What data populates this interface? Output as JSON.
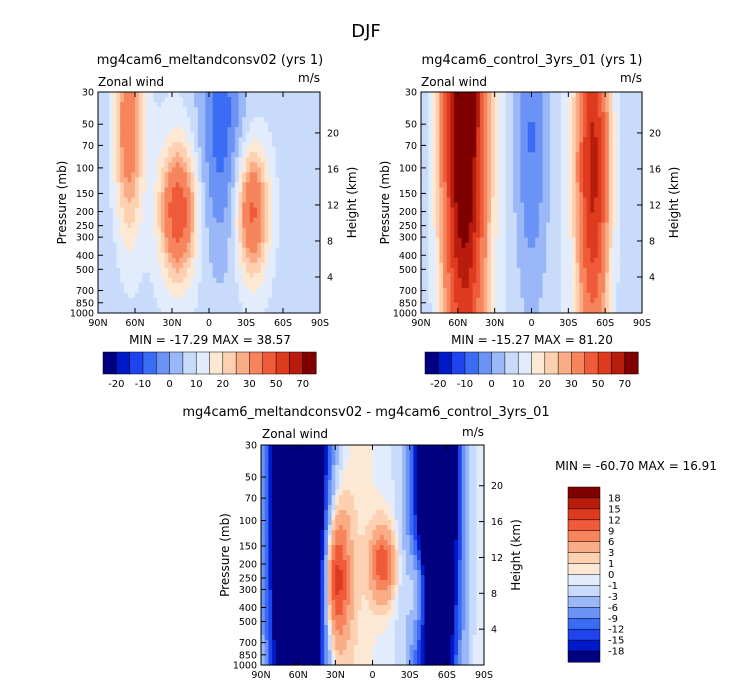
{
  "page_title": "DJF",
  "colors": {
    "blues": [
      "#000080",
      "#0019c9",
      "#1e44f0",
      "#3a6cf4",
      "#6b93f5",
      "#9ab7f7",
      "#c8dbfa",
      "#e2ecfc"
    ],
    "reds": [
      "#fde8d4",
      "#fcd0b0",
      "#f9ac85",
      "#f6855e",
      "#ef5b38",
      "#de3a1e",
      "#b81c0c",
      "#800000"
    ]
  },
  "chart_data": [
    {
      "type": "heatmap",
      "id": "panel1",
      "title": "mg4cam6_meltandconsv02 (yrs 1)",
      "left_label": "Zonal wind",
      "right_label": "m/s",
      "xlabel": "",
      "ylabel": "Pressure (mb)",
      "y2label": "Height (km)",
      "x_ticks": [
        "90N",
        "60N",
        "30N",
        "0",
        "30S",
        "60S",
        "90S"
      ],
      "x_values": [
        90,
        60,
        30,
        0,
        -30,
        -60,
        -90
      ],
      "y_ticks": [
        "30",
        "50",
        "70",
        "100",
        "150",
        "200",
        "250",
        "300",
        "400",
        "500",
        "700",
        "850",
        "1000"
      ],
      "y_values": [
        30,
        50,
        70,
        100,
        150,
        200,
        250,
        300,
        400,
        500,
        700,
        850,
        1000
      ],
      "y2_ticks": [
        "20",
        "16",
        "12",
        "8",
        "4"
      ],
      "y2_values": [
        20,
        16,
        12,
        8,
        4
      ],
      "stats": "MIN = -17.29   MAX =  38.57",
      "levels": [
        "-20",
        "-10",
        "0",
        "10",
        "20",
        "30",
        "50",
        "70"
      ],
      "features": [
        {
          "lat": 65,
          "p": 50,
          "value": 30,
          "spread_lat": 8,
          "spread_p": 60
        },
        {
          "lat": 25,
          "p": 200,
          "value": 38.57,
          "spread_lat": 10,
          "spread_p": 140
        },
        {
          "lat": -35,
          "p": 200,
          "value": 34,
          "spread_lat": 9,
          "spread_p": 140
        },
        {
          "lat": -10,
          "p": 50,
          "value": -17.29,
          "spread_lat": 14,
          "spread_p": 80
        }
      ]
    },
    {
      "type": "heatmap",
      "id": "panel2",
      "title": "mg4cam6_control_3yrs_01 (yrs 1)",
      "left_label": "Zonal wind",
      "right_label": "m/s",
      "xlabel": "",
      "ylabel": "Pressure (mb)",
      "y2label": "Height (km)",
      "x_ticks": [
        "90N",
        "60N",
        "30N",
        "0",
        "30S",
        "60S",
        "90S"
      ],
      "x_values": [
        90,
        60,
        30,
        0,
        -30,
        -60,
        -90
      ],
      "y_ticks": [
        "30",
        "50",
        "70",
        "100",
        "150",
        "200",
        "250",
        "300",
        "400",
        "500",
        "700",
        "850",
        "1000"
      ],
      "y_values": [
        30,
        50,
        70,
        100,
        150,
        200,
        250,
        300,
        400,
        500,
        700,
        850,
        1000
      ],
      "y2_ticks": [
        "20",
        "16",
        "12",
        "8",
        "4"
      ],
      "y2_values": [
        20,
        16,
        12,
        8,
        4
      ],
      "stats": "MIN = -15.27   MAX =  81.20",
      "levels": [
        "-20",
        "-10",
        "0",
        "10",
        "20",
        "30",
        "50",
        "70"
      ],
      "features": [
        {
          "lat": 55,
          "p": 40,
          "value": 81.2,
          "spread_lat": 12,
          "spread_p": 120
        },
        {
          "lat": -50,
          "p": 100,
          "value": 55,
          "spread_lat": 9,
          "spread_p": 200
        },
        {
          "lat": 0,
          "p": 60,
          "value": -15.27,
          "spread_lat": 10,
          "spread_p": 120
        }
      ]
    },
    {
      "type": "heatmap",
      "id": "panel3",
      "title": "mg4cam6_meltandconsv02 - mg4cam6_control_3yrs_01",
      "left_label": "Zonal wind",
      "right_label": "m/s",
      "xlabel": "",
      "ylabel": "Pressure (mb)",
      "y2label": "Height (km)",
      "x_ticks": [
        "90N",
        "60N",
        "30N",
        "0",
        "30S",
        "60S",
        "90S"
      ],
      "x_values": [
        90,
        60,
        30,
        0,
        -30,
        -60,
        -90
      ],
      "y_ticks": [
        "30",
        "50",
        "70",
        "100",
        "150",
        "200",
        "250",
        "300",
        "400",
        "500",
        "700",
        "850",
        "1000"
      ],
      "y_values": [
        30,
        50,
        70,
        100,
        150,
        200,
        250,
        300,
        400,
        500,
        700,
        850,
        1000
      ],
      "y2_ticks": [
        "20",
        "16",
        "12",
        "8",
        "4"
      ],
      "y2_values": [
        20,
        16,
        12,
        8,
        4
      ],
      "stats": "MIN = -60.70   MAX =  16.91",
      "levels": [
        "18",
        "15",
        "12",
        "9",
        "6",
        "3",
        "1",
        "0",
        "-1",
        "-3",
        "-6",
        "-9",
        "-12",
        "-15",
        "-18"
      ],
      "features": [
        {
          "lat": 60,
          "p": 60,
          "value": -60.7,
          "spread_lat": 14,
          "spread_p": 200
        },
        {
          "lat": -52,
          "p": 50,
          "value": -45,
          "spread_lat": 12,
          "spread_p": 150
        },
        {
          "lat": 30,
          "p": 250,
          "value": 16.91,
          "spread_lat": 8,
          "spread_p": 200
        },
        {
          "lat": -8,
          "p": 200,
          "value": 12,
          "spread_lat": 7,
          "spread_p": 80
        },
        {
          "lat": -38,
          "p": 300,
          "value": 12,
          "spread_lat": 6,
          "spread_p": 150
        }
      ]
    }
  ]
}
